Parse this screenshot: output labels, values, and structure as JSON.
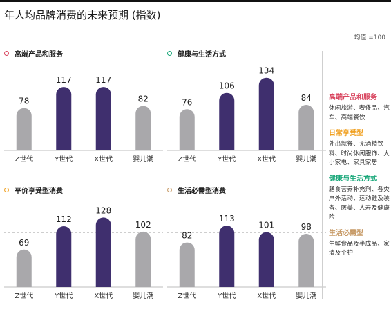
{
  "header": {
    "title": "年人均品牌消费的未来预期 (指数)",
    "baseline_note": "均值 =100"
  },
  "colors": {
    "gray_bar": "#a9a8ab",
    "purple_bar": "#3f2f6e",
    "ref_line": "#c8c8c8",
    "premium": "#d9455f",
    "daily": "#f0a020",
    "health": "#1aa87a",
    "essentials": "#c79a66"
  },
  "chart_data": [
    {
      "type": "bar",
      "title": "高端产品和服务",
      "title_color": "#d9455f",
      "categories": [
        "Z世代",
        "Y世代",
        "X世代",
        "婴儿潮"
      ],
      "values": [
        78,
        117,
        117,
        82
      ],
      "highlight": [
        false,
        true,
        true,
        false
      ],
      "reference_line": null,
      "ylim": [
        0,
        140
      ]
    },
    {
      "type": "bar",
      "title": "健康与生活方式",
      "title_color": "#1aa87a",
      "categories": [
        "Z世代",
        "Y世代",
        "X世代",
        "婴儿潮"
      ],
      "values": [
        76,
        106,
        134,
        84
      ],
      "highlight": [
        false,
        true,
        true,
        false
      ],
      "reference_line": null,
      "ylim": [
        0,
        140
      ]
    },
    {
      "type": "bar",
      "title": "平价享受型消费",
      "title_color": "#f0a020",
      "categories": [
        "Z世代",
        "Y世代",
        "X世代",
        "婴儿潮"
      ],
      "values": [
        69,
        112,
        128,
        102
      ],
      "highlight": [
        false,
        true,
        true,
        false
      ],
      "reference_line": 100,
      "ylim": [
        0,
        140
      ]
    },
    {
      "type": "bar",
      "title": "生活必需型消费",
      "title_color": "#c79a66",
      "categories": [
        "Z世代",
        "Y世代",
        "X世代",
        "婴儿潮"
      ],
      "values": [
        82,
        113,
        101,
        98
      ],
      "highlight": [
        false,
        true,
        true,
        false
      ],
      "reference_line": 100,
      "ylim": [
        0,
        140
      ]
    }
  ],
  "legend": [
    {
      "title": "高端产品和服务",
      "color": "#d9455f",
      "description": "休闲旅游、奢侈品、汽车、高端餐饮"
    },
    {
      "title": "日常享受型",
      "color": "#f0a020",
      "description": "外出就餐、无酒精饮料、时尚休闲服饰、大小家电、家具家居"
    },
    {
      "title": "健康与生活方式",
      "color": "#1aa87a",
      "description": "膳食营养补充剂、各类户外活动、运动鞋及装备、医美、人寿及健康险"
    },
    {
      "title": "生活必需型",
      "color": "#c79a66",
      "description": "生鲜食品及半成品、家清及个护"
    }
  ]
}
